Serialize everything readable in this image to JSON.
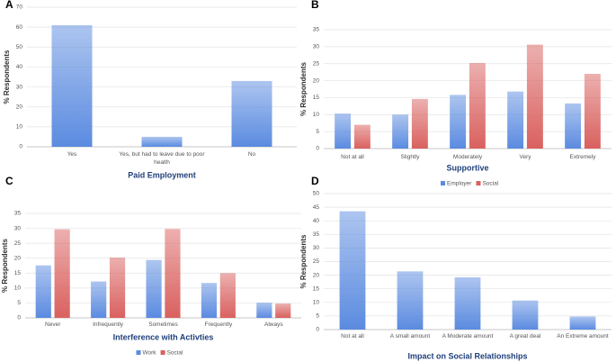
{
  "chart_data": [
    {
      "type": "bar",
      "label": "A",
      "xlabel": "Paid Employment",
      "ylabel": "% Respondents",
      "categories": [
        "Yes",
        "Yes, but had to leave due to poor health",
        "No"
      ],
      "series": [
        {
          "name": null,
          "color": "#5b8be0",
          "values": [
            61,
            5,
            33
          ]
        }
      ],
      "ylim": [
        0,
        70
      ],
      "yticks": [
        0,
        10,
        20,
        30,
        40,
        50,
        60,
        70
      ],
      "grid": true
    },
    {
      "type": "bar",
      "label": "B",
      "xlabel": "Supportive",
      "ylabel": "% Respondents",
      "categories": [
        "Not at all",
        "Slightly",
        "Moderately",
        "Very",
        "Extremely"
      ],
      "series": [
        {
          "name": "Employer",
          "color": "#5b8be0",
          "values": [
            10.3,
            10,
            15.8,
            16.8,
            13.3
          ]
        },
        {
          "name": "Social",
          "color": "#d9615f",
          "values": [
            7,
            14.6,
            25.2,
            30.6,
            22
          ]
        }
      ],
      "ylim": [
        0,
        35
      ],
      "yticks": [
        0,
        5,
        10,
        15,
        20,
        25,
        30,
        35
      ],
      "grid": true
    },
    {
      "type": "bar",
      "label": "C",
      "xlabel": "Interference with Activties",
      "ylabel": "% Respondents",
      "categories": [
        "Never",
        "Infrequently",
        "Sometimes",
        "Frequently",
        "Always"
      ],
      "series": [
        {
          "name": "Work",
          "color": "#5b8be0",
          "values": [
            17.6,
            12.2,
            19.4,
            11.7,
            5.1
          ]
        },
        {
          "name": "Social",
          "color": "#d9615f",
          "values": [
            29.7,
            20.2,
            29.8,
            15,
            4.8
          ]
        }
      ],
      "ylim": [
        0,
        35
      ],
      "yticks": [
        0,
        5,
        10,
        15,
        20,
        25,
        30,
        35
      ],
      "grid": true
    },
    {
      "type": "bar",
      "label": "D",
      "xlabel": "Impact on Social Relationships",
      "ylabel": "% Respondents",
      "categories": [
        "Not at all",
        "A small amount",
        "A Moderate amount",
        "A great deal",
        "An Extreme amount"
      ],
      "series": [
        {
          "name": null,
          "color": "#5b8be0",
          "values": [
            43.5,
            21.4,
            19.2,
            10.7,
            4.8
          ]
        }
      ],
      "ylim": [
        0,
        50
      ],
      "yticks": [
        0,
        5,
        10,
        15,
        20,
        25,
        30,
        35,
        40,
        45,
        50
      ],
      "grid": true
    }
  ]
}
